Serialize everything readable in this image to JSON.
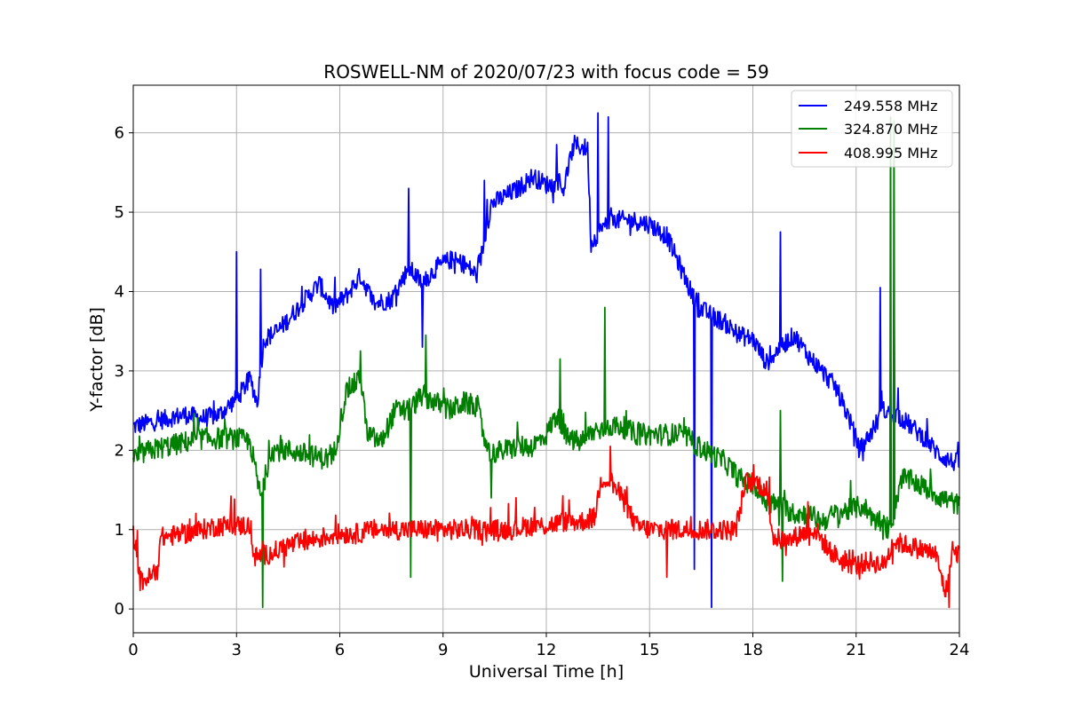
{
  "chart_data": {
    "type": "line",
    "title": "ROSWELL-NM of 2020/07/23 with focus code = 59",
    "xlabel": "Universal Time [h]",
    "ylabel": "Y-factor [dB]",
    "xlim": [
      0,
      24
    ],
    "ylim": [
      -0.3,
      6.6
    ],
    "xticks": [
      0,
      3,
      6,
      9,
      12,
      15,
      18,
      21,
      24
    ],
    "yticks": [
      0,
      1,
      2,
      3,
      4,
      5,
      6
    ],
    "grid": true,
    "legend_position": "top-right",
    "series": [
      {
        "name": "249.558 MHz",
        "color": "#0000ff",
        "noise": 0.12,
        "points": [
          [
            0,
            2.3
          ],
          [
            0.5,
            2.35
          ],
          [
            1,
            2.4
          ],
          [
            1.5,
            2.45
          ],
          [
            2,
            2.4
          ],
          [
            2.5,
            2.45
          ],
          [
            3,
            2.65
          ],
          [
            3.4,
            2.9
          ],
          [
            3.6,
            2.6
          ],
          [
            3.8,
            3.4
          ],
          [
            4.2,
            3.5
          ],
          [
            4.6,
            3.7
          ],
          [
            5,
            3.9
          ],
          [
            5.4,
            4.1
          ],
          [
            5.8,
            3.8
          ],
          [
            6.2,
            3.95
          ],
          [
            6.6,
            4.2
          ],
          [
            7,
            3.85
          ],
          [
            7.5,
            3.9
          ],
          [
            8,
            4.3
          ],
          [
            8.4,
            4.1
          ],
          [
            8.8,
            4.3
          ],
          [
            9.2,
            4.4
          ],
          [
            9.6,
            4.35
          ],
          [
            10,
            4.2
          ],
          [
            10.4,
            5.1
          ],
          [
            10.8,
            5.2
          ],
          [
            11.2,
            5.3
          ],
          [
            11.6,
            5.45
          ],
          [
            12,
            5.35
          ],
          [
            12.5,
            5.3
          ],
          [
            12.8,
            5.85
          ],
          [
            13.2,
            5.8
          ],
          [
            13.3,
            4.6
          ],
          [
            13.6,
            4.8
          ],
          [
            14,
            4.9
          ],
          [
            14.5,
            4.9
          ],
          [
            15,
            4.85
          ],
          [
            15.5,
            4.7
          ],
          [
            16,
            4.2
          ],
          [
            16.4,
            3.8
          ],
          [
            16.8,
            3.7
          ],
          [
            17.2,
            3.6
          ],
          [
            17.6,
            3.45
          ],
          [
            18,
            3.4
          ],
          [
            18.4,
            3.1
          ],
          [
            18.8,
            3.3
          ],
          [
            19.2,
            3.45
          ],
          [
            19.6,
            3.2
          ],
          [
            20,
            3.0
          ],
          [
            20.4,
            2.8
          ],
          [
            20.8,
            2.4
          ],
          [
            21.1,
            2.0
          ],
          [
            21.4,
            2.2
          ],
          [
            21.8,
            2.5
          ],
          [
            22.2,
            2.45
          ],
          [
            22.6,
            2.3
          ],
          [
            23,
            2.15
          ],
          [
            23.4,
            1.95
          ],
          [
            23.8,
            1.85
          ],
          [
            24,
            1.85
          ]
        ],
        "spikes": [
          [
            3.0,
            4.5
          ],
          [
            3.7,
            4.28
          ],
          [
            8.0,
            5.3
          ],
          [
            8.4,
            3.3
          ],
          [
            10.2,
            5.4
          ],
          [
            12.3,
            5.85
          ],
          [
            13.5,
            6.25
          ],
          [
            13.8,
            6.2
          ],
          [
            16.3,
            0.5
          ],
          [
            16.8,
            0.0
          ],
          [
            18.8,
            4.75
          ],
          [
            21.7,
            4.05
          ],
          [
            22.1,
            4.1
          ]
        ]
      },
      {
        "name": "324.870 MHz",
        "color": "#008000",
        "noise": 0.14,
        "points": [
          [
            0,
            1.9
          ],
          [
            0.5,
            2.0
          ],
          [
            1,
            2.05
          ],
          [
            1.5,
            2.1
          ],
          [
            2,
            2.15
          ],
          [
            2.5,
            2.15
          ],
          [
            3,
            2.15
          ],
          [
            3.4,
            2.1
          ],
          [
            3.7,
            1.4
          ],
          [
            4,
            2.0
          ],
          [
            4.5,
            2.0
          ],
          [
            5,
            1.95
          ],
          [
            5.5,
            1.9
          ],
          [
            5.8,
            1.9
          ],
          [
            6.2,
            2.75
          ],
          [
            6.6,
            2.9
          ],
          [
            6.8,
            2.2
          ],
          [
            7.2,
            2.1
          ],
          [
            7.6,
            2.5
          ],
          [
            8,
            2.5
          ],
          [
            8.4,
            2.7
          ],
          [
            8.8,
            2.6
          ],
          [
            9.2,
            2.5
          ],
          [
            9.6,
            2.6
          ],
          [
            10,
            2.55
          ],
          [
            10.3,
            1.95
          ],
          [
            10.8,
            2.0
          ],
          [
            11.2,
            2.05
          ],
          [
            11.6,
            2.05
          ],
          [
            12,
            2.2
          ],
          [
            12.3,
            2.45
          ],
          [
            12.6,
            2.15
          ],
          [
            13,
            2.1
          ],
          [
            13.4,
            2.25
          ],
          [
            13.8,
            2.3
          ],
          [
            14.2,
            2.3
          ],
          [
            14.6,
            2.2
          ],
          [
            15,
            2.2
          ],
          [
            15.5,
            2.2
          ],
          [
            16,
            2.2
          ],
          [
            16.4,
            2.05
          ],
          [
            16.8,
            1.95
          ],
          [
            17.2,
            1.85
          ],
          [
            17.6,
            1.65
          ],
          [
            18,
            1.55
          ],
          [
            18.4,
            1.35
          ],
          [
            18.8,
            1.3
          ],
          [
            19.2,
            1.2
          ],
          [
            19.6,
            1.2
          ],
          [
            20,
            1.1
          ],
          [
            20.4,
            1.2
          ],
          [
            20.8,
            1.25
          ],
          [
            21.2,
            1.3
          ],
          [
            21.6,
            1.1
          ],
          [
            22,
            1.0
          ],
          [
            22.3,
            1.65
          ],
          [
            22.7,
            1.6
          ],
          [
            23.1,
            1.5
          ],
          [
            23.5,
            1.4
          ],
          [
            24,
            1.3
          ]
        ],
        "spikes": [
          [
            3.75,
            0.0
          ],
          [
            6.6,
            3.25
          ],
          [
            8.05,
            0.4
          ],
          [
            8.5,
            3.45
          ],
          [
            10.4,
            1.4
          ],
          [
            12.4,
            3.15
          ],
          [
            13.7,
            3.8
          ],
          [
            18.8,
            2.5
          ],
          [
            18.85,
            0.35
          ],
          [
            22.0,
            6.2
          ],
          [
            22.1,
            6.15
          ]
        ]
      },
      {
        "name": "408.995 MHz",
        "color": "#ff0000",
        "noise": 0.13,
        "points": [
          [
            0,
            0.95
          ],
          [
            0.2,
            0.35
          ],
          [
            0.5,
            0.4
          ],
          [
            0.7,
            0.5
          ],
          [
            0.8,
            0.9
          ],
          [
            1.5,
            0.95
          ],
          [
            2,
            1.0
          ],
          [
            2.5,
            1.05
          ],
          [
            3,
            1.05
          ],
          [
            3.4,
            1.05
          ],
          [
            3.5,
            0.65
          ],
          [
            4,
            0.7
          ],
          [
            4.5,
            0.8
          ],
          [
            5,
            0.85
          ],
          [
            5.5,
            0.9
          ],
          [
            6,
            0.95
          ],
          [
            6.5,
            0.95
          ],
          [
            7,
            1.0
          ],
          [
            7.5,
            1.0
          ],
          [
            8,
            1.0
          ],
          [
            8.5,
            1.0
          ],
          [
            9,
            1.0
          ],
          [
            9.5,
            1.0
          ],
          [
            10,
            1.0
          ],
          [
            10.5,
            1.0
          ],
          [
            11,
            1.0
          ],
          [
            11.5,
            1.05
          ],
          [
            12,
            1.05
          ],
          [
            12.5,
            1.1
          ],
          [
            13,
            1.1
          ],
          [
            13.4,
            1.15
          ],
          [
            13.6,
            1.65
          ],
          [
            13.9,
            1.6
          ],
          [
            14.2,
            1.4
          ],
          [
            14.6,
            1.05
          ],
          [
            15,
            1.0
          ],
          [
            15.5,
            1.0
          ],
          [
            16,
            1.0
          ],
          [
            16.5,
            1.0
          ],
          [
            17,
            1.0
          ],
          [
            17.5,
            1.0
          ],
          [
            17.8,
            1.6
          ],
          [
            18.1,
            1.6
          ],
          [
            18.4,
            1.5
          ],
          [
            18.6,
            0.9
          ],
          [
            19,
            0.85
          ],
          [
            19.4,
            0.95
          ],
          [
            19.8,
            1.0
          ],
          [
            20.2,
            0.75
          ],
          [
            20.6,
            0.6
          ],
          [
            21,
            0.55
          ],
          [
            21.4,
            0.6
          ],
          [
            21.8,
            0.55
          ],
          [
            22.1,
            0.85
          ],
          [
            22.5,
            0.8
          ],
          [
            22.9,
            0.75
          ],
          [
            23.3,
            0.7
          ],
          [
            23.6,
            0.2
          ],
          [
            23.8,
            0.7
          ],
          [
            24,
            0.7
          ]
        ],
        "spikes": [
          [
            13.85,
            2.05
          ],
          [
            15.5,
            0.4
          ],
          [
            19.6,
            1.35
          ],
          [
            23.7,
            0.0
          ]
        ]
      }
    ]
  }
}
